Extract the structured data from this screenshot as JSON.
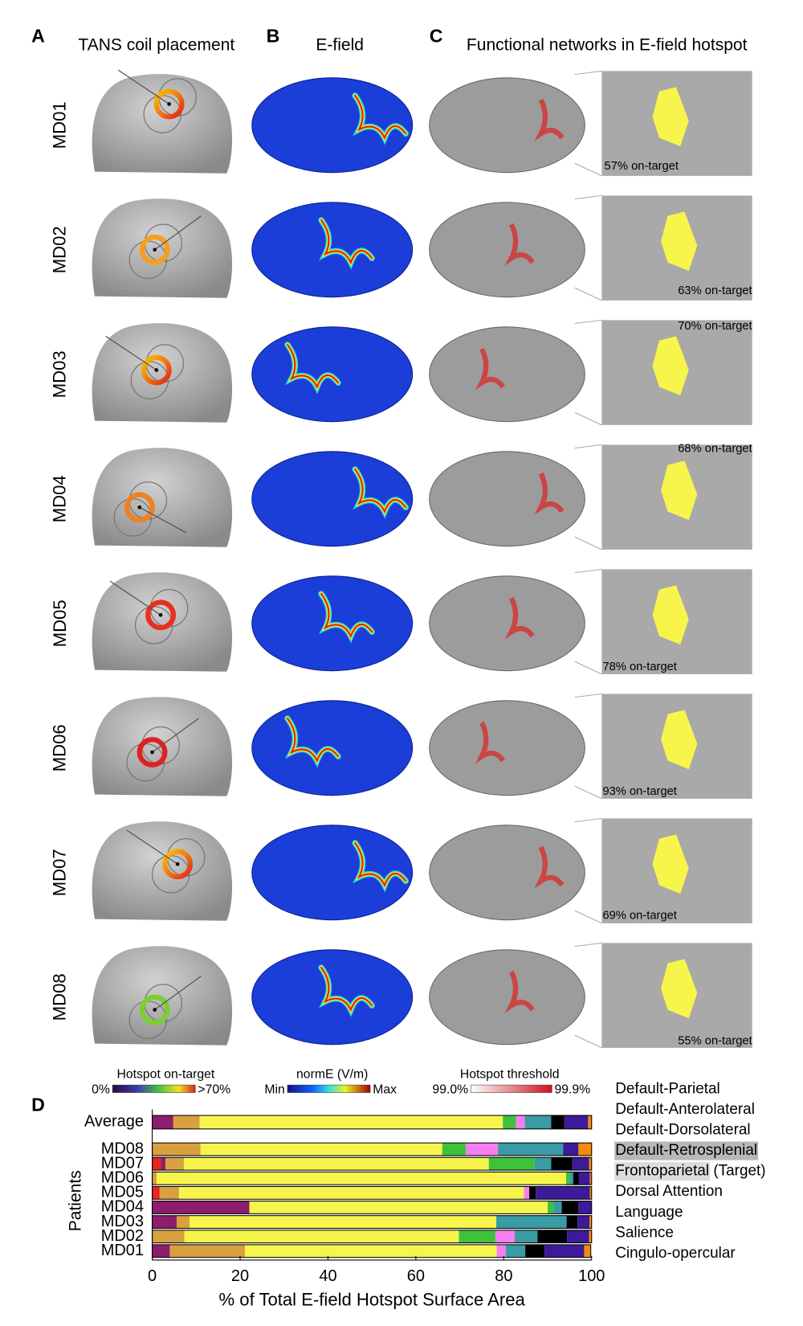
{
  "figure": {
    "panels": [
      {
        "label": "A",
        "title": "TANS coil placement"
      },
      {
        "label": "B",
        "title": "E-field"
      },
      {
        "label": "C",
        "title": "Functional networks in E-field hotspot"
      }
    ],
    "rows": [
      {
        "label": "MD01",
        "on_target": "57% on-target"
      },
      {
        "label": "MD02",
        "on_target": "63% on-target"
      },
      {
        "label": "MD03",
        "on_target": "70% on-target"
      },
      {
        "label": "MD04",
        "on_target": "68% on-target"
      },
      {
        "label": "MD05",
        "on_target": "78% on-target"
      },
      {
        "label": "MD06",
        "on_target": "93% on-target"
      },
      {
        "label": "MD07",
        "on_target": "69% on-target"
      },
      {
        "label": "MD08",
        "on_target": "55% on-target"
      }
    ],
    "colorbars": [
      {
        "title": "Hotspot on-target",
        "min": "0%",
        "max": ">70%"
      },
      {
        "title": "normE (V/m)",
        "min": "Min",
        "max": "Max"
      },
      {
        "title": "Hotspot threshold",
        "min": "99.0%",
        "max": "99.9%"
      }
    ]
  },
  "chart_data": {
    "type": "bar",
    "orientation": "horizontal",
    "stacked": true,
    "panel_label": "D",
    "xlabel": "% of Total E-field Hotspot Surface Area",
    "ylabel": "Patients",
    "categories": [
      "Average",
      "MD08",
      "MD07",
      "MD06",
      "MD05",
      "MD04",
      "MD03",
      "MD02",
      "MD01"
    ],
    "xlim": [
      0,
      100
    ],
    "xticks": [
      0,
      20,
      40,
      60,
      80,
      100
    ],
    "series": [
      {
        "name": "Default-Parietal",
        "color": "#e8261f",
        "values": [
          0,
          0,
          2,
          0,
          1.7,
          0,
          0,
          0,
          0
        ]
      },
      {
        "name": "Default-Anterolateral",
        "color": "#8e1d6e",
        "values": [
          4.8,
          0,
          1,
          0,
          0,
          22.1,
          5.6,
          0,
          4
        ]
      },
      {
        "name": "Default-Dorsolateral",
        "color": "#d9a040",
        "values": [
          6,
          11,
          4.2,
          1,
          4.4,
          0,
          2.9,
          7.3,
          17.1
        ]
      },
      {
        "name": "Default-Retrosplenial",
        "color": "#ffffff",
        "values": [
          0,
          0,
          0,
          0,
          0,
          0,
          0,
          0,
          0
        ]
      },
      {
        "name": "Frontoparietal",
        "color": "#f7f54c",
        "note": "(Target)",
        "values": [
          69,
          55,
          69.4,
          93.2,
          78.5,
          67.9,
          69.8,
          62.5,
          57.3
        ]
      },
      {
        "name": "Dorsal Attention",
        "color": "#3ec23c",
        "values": [
          3,
          5.4,
          10.4,
          0.8,
          0,
          1.3,
          0,
          8.3,
          0
        ]
      },
      {
        "color": "#f77ef0",
        "values": [
          2,
          7.3,
          0,
          0,
          1.2,
          0,
          0,
          4.4,
          2.1
        ]
      },
      {
        "name": "Language",
        "color": "#399ba3",
        "values": [
          6,
          14.8,
          3.8,
          0.8,
          0,
          1.9,
          16,
          5.2,
          4.4
        ]
      },
      {
        "name": "Salience",
        "color": "#000000",
        "values": [
          3,
          0,
          4.8,
          1.3,
          1.5,
          3.8,
          2.5,
          6.7,
          4.4
        ]
      },
      {
        "name": "Cingulo-opercular",
        "color": "#3d1a99",
        "values": [
          5.4,
          3.5,
          3.8,
          2.5,
          12.3,
          3,
          2.7,
          5,
          9
        ]
      },
      {
        "color": "#f58a0a",
        "values": [
          0.8,
          3,
          0.6,
          0.4,
          0.4,
          0,
          0.5,
          0.6,
          1.5
        ]
      }
    ]
  }
}
